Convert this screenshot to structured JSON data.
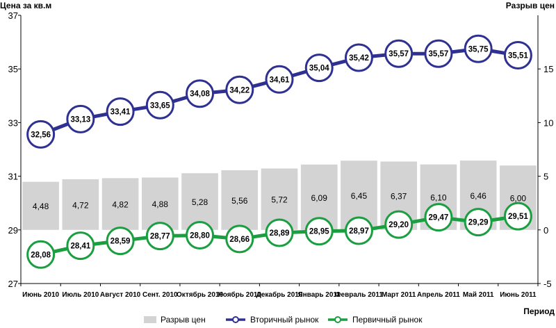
{
  "chart_data": {
    "type": "bar+line",
    "left_axis_title": "Цена за кв.м",
    "right_axis_title": "Разрыв цен",
    "xlabel": "Период",
    "left_ylim": [
      27,
      37
    ],
    "left_ticks": [
      "27",
      "29",
      "31",
      "33",
      "35",
      "37"
    ],
    "right_ylim": [
      -5,
      20
    ],
    "right_ticks": [
      "-5",
      "0",
      "5",
      "10",
      "15"
    ],
    "grid": false,
    "categories": [
      "Июнь 2010",
      "Июль 2010",
      "Август 2010",
      "Сент.  2010",
      "Октябрь 2010",
      "Ноябрь 2010",
      "Декабрь 2010",
      "Январь 2011",
      "Февраль 2011",
      "Март 2011",
      "Апрель 2011",
      "Май 2011",
      "Июнь 2011"
    ],
    "bars": {
      "name": "Разрыв цен",
      "axis": "right",
      "color": "#d3d3d3",
      "values": [
        4.48,
        4.72,
        4.82,
        4.88,
        5.28,
        5.56,
        5.72,
        6.09,
        6.45,
        6.37,
        6.1,
        6.46,
        6.0
      ],
      "labels": [
        "4,48",
        "4,72",
        "4,82",
        "4,88",
        "5,28",
        "5,56",
        "5,72",
        "6,09",
        "6,45",
        "6,37",
        "6,10",
        "6,46",
        "6,00"
      ]
    },
    "series": [
      {
        "name": "Вторичный рынок",
        "axis": "left",
        "color": "#2e3192",
        "values": [
          32.56,
          33.13,
          33.41,
          33.65,
          34.08,
          34.22,
          34.61,
          35.04,
          35.42,
          35.57,
          35.57,
          35.75,
          35.51
        ],
        "labels": [
          "32,56",
          "33,13",
          "33,41",
          "33,65",
          "34,08",
          "34,22",
          "34,61",
          "35,04",
          "35,42",
          "35,57",
          "35,57",
          "35,75",
          "35,51"
        ]
      },
      {
        "name": "Первичный рынок",
        "axis": "left",
        "color": "#1a9e3f",
        "values": [
          28.08,
          28.41,
          28.59,
          28.77,
          28.8,
          28.66,
          28.89,
          28.95,
          28.97,
          29.2,
          29.47,
          29.29,
          29.51
        ],
        "labels": [
          "28,08",
          "28,41",
          "28,59",
          "28,77",
          "28,80",
          "28,66",
          "28,89",
          "28,95",
          "28,97",
          "29,20",
          "29,47",
          "29,29",
          "29,51"
        ]
      }
    ],
    "legend_position": "bottom"
  }
}
